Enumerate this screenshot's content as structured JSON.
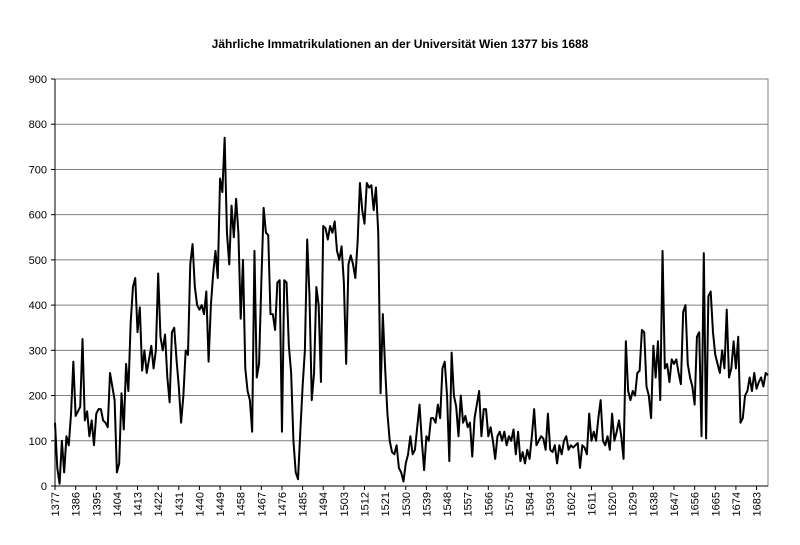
{
  "chart_data": {
    "type": "line",
    "title": "Jährliche Immatrikulationen an der Universität Wien 1377 bis 1688",
    "color": "#000000",
    "grid": true,
    "xlim": [
      1377,
      1688
    ],
    "ylim": [
      0,
      900
    ],
    "yticks": [
      0,
      100,
      200,
      300,
      400,
      500,
      600,
      700,
      800,
      900
    ],
    "xticks": [
      1377,
      1386,
      1395,
      1404,
      1413,
      1422,
      1431,
      1440,
      1449,
      1458,
      1467,
      1476,
      1485,
      1494,
      1503,
      1512,
      1521,
      1530,
      1539,
      1548,
      1557,
      1566,
      1575,
      1584,
      1593,
      1602,
      1611,
      1620,
      1629,
      1638,
      1647,
      1656,
      1665,
      1674,
      1683
    ],
    "x": [
      1377,
      1378,
      1379,
      1380,
      1381,
      1382,
      1383,
      1384,
      1385,
      1386,
      1387,
      1388,
      1389,
      1390,
      1391,
      1392,
      1393,
      1394,
      1395,
      1396,
      1397,
      1398,
      1399,
      1400,
      1401,
      1402,
      1403,
      1404,
      1405,
      1406,
      1407,
      1408,
      1409,
      1410,
      1411,
      1412,
      1413,
      1414,
      1415,
      1416,
      1417,
      1418,
      1419,
      1420,
      1421,
      1422,
      1423,
      1424,
      1425,
      1426,
      1427,
      1428,
      1429,
      1430,
      1431,
      1432,
      1433,
      1434,
      1435,
      1436,
      1437,
      1438,
      1439,
      1440,
      1441,
      1442,
      1443,
      1444,
      1445,
      1446,
      1447,
      1448,
      1449,
      1450,
      1451,
      1452,
      1453,
      1454,
      1455,
      1456,
      1457,
      1458,
      1459,
      1460,
      1461,
      1462,
      1463,
      1464,
      1465,
      1466,
      1467,
      1468,
      1469,
      1470,
      1471,
      1472,
      1473,
      1474,
      1475,
      1476,
      1477,
      1478,
      1479,
      1480,
      1481,
      1482,
      1483,
      1484,
      1485,
      1486,
      1487,
      1488,
      1489,
      1490,
      1491,
      1492,
      1493,
      1494,
      1495,
      1496,
      1497,
      1498,
      1499,
      1500,
      1501,
      1502,
      1503,
      1504,
      1505,
      1506,
      1507,
      1508,
      1509,
      1510,
      1511,
      1512,
      1513,
      1514,
      1515,
      1516,
      1517,
      1518,
      1519,
      1520,
      1521,
      1522,
      1523,
      1524,
      1525,
      1526,
      1527,
      1528,
      1529,
      1530,
      1531,
      1532,
      1533,
      1534,
      1535,
      1536,
      1537,
      1538,
      1539,
      1540,
      1541,
      1542,
      1543,
      1544,
      1545,
      1546,
      1547,
      1548,
      1549,
      1550,
      1551,
      1552,
      1553,
      1554,
      1555,
      1556,
      1557,
      1558,
      1559,
      1560,
      1561,
      1562,
      1563,
      1564,
      1565,
      1566,
      1567,
      1568,
      1569,
      1570,
      1571,
      1572,
      1573,
      1574,
      1575,
      1576,
      1577,
      1578,
      1579,
      1580,
      1581,
      1582,
      1583,
      1584,
      1585,
      1586,
      1587,
      1588,
      1589,
      1590,
      1591,
      1592,
      1593,
      1594,
      1595,
      1596,
      1597,
      1598,
      1599,
      1600,
      1601,
      1602,
      1603,
      1604,
      1605,
      1606,
      1607,
      1608,
      1609,
      1610,
      1611,
      1612,
      1613,
      1614,
      1615,
      1616,
      1617,
      1618,
      1619,
      1620,
      1621,
      1622,
      1623,
      1624,
      1625,
      1626,
      1627,
      1628,
      1629,
      1630,
      1631,
      1632,
      1633,
      1634,
      1635,
      1636,
      1637,
      1638,
      1639,
      1640,
      1641,
      1642,
      1643,
      1644,
      1645,
      1646,
      1647,
      1648,
      1649,
      1650,
      1651,
      1652,
      1653,
      1654,
      1655,
      1656,
      1657,
      1658,
      1659,
      1660,
      1661,
      1662,
      1663,
      1664,
      1665,
      1666,
      1667,
      1668,
      1669,
      1670,
      1671,
      1672,
      1673,
      1674,
      1675,
      1676,
      1677,
      1678,
      1679,
      1680,
      1681,
      1682,
      1683,
      1684,
      1685,
      1686,
      1687,
      1688
    ],
    "values": [
      140,
      40,
      5,
      100,
      30,
      110,
      90,
      160,
      275,
      155,
      165,
      175,
      325,
      145,
      165,
      110,
      145,
      90,
      160,
      170,
      170,
      145,
      140,
      130,
      250,
      220,
      190,
      30,
      50,
      205,
      125,
      270,
      210,
      360,
      440,
      460,
      340,
      395,
      255,
      300,
      250,
      280,
      310,
      260,
      300,
      470,
      330,
      300,
      335,
      240,
      185,
      340,
      350,
      280,
      220,
      140,
      200,
      300,
      290,
      490,
      535,
      440,
      400,
      390,
      400,
      380,
      430,
      275,
      400,
      470,
      520,
      460,
      680,
      650,
      770,
      560,
      490,
      620,
      550,
      635,
      560,
      370,
      500,
      260,
      210,
      190,
      120,
      520,
      240,
      270,
      450,
      615,
      560,
      555,
      380,
      380,
      345,
      450,
      455,
      120,
      455,
      450,
      310,
      250,
      100,
      30,
      15,
      120,
      220,
      300,
      545,
      420,
      190,
      250,
      440,
      400,
      230,
      575,
      570,
      545,
      575,
      560,
      585,
      520,
      500,
      530,
      450,
      270,
      490,
      510,
      490,
      460,
      540,
      670,
      610,
      580,
      670,
      660,
      665,
      610,
      660,
      560,
      205,
      380,
      260,
      160,
      100,
      75,
      70,
      90,
      40,
      30,
      10,
      50,
      70,
      110,
      70,
      80,
      130,
      180,
      100,
      35,
      110,
      100,
      150,
      150,
      140,
      180,
      150,
      260,
      275,
      200,
      55,
      295,
      200,
      175,
      110,
      200,
      140,
      155,
      130,
      140,
      65,
      150,
      180,
      210,
      110,
      170,
      170,
      110,
      130,
      100,
      60,
      110,
      120,
      100,
      120,
      90,
      110,
      100,
      125,
      70,
      120,
      55,
      75,
      50,
      80,
      60,
      110,
      170,
      90,
      100,
      110,
      105,
      80,
      160,
      80,
      75,
      90,
      50,
      90,
      70,
      100,
      110,
      80,
      90,
      85,
      90,
      95,
      40,
      90,
      85,
      70,
      160,
      100,
      120,
      100,
      150,
      190,
      100,
      90,
      110,
      80,
      160,
      100,
      120,
      145,
      110,
      60,
      320,
      210,
      190,
      210,
      200,
      250,
      255,
      345,
      340,
      220,
      200,
      150,
      310,
      240,
      320,
      190,
      520,
      260,
      270,
      230,
      280,
      270,
      280,
      250,
      225,
      385,
      400,
      270,
      240,
      220,
      180,
      330,
      340,
      110,
      515,
      105,
      420,
      430,
      340,
      290,
      270,
      250,
      300,
      260,
      390,
      240,
      260,
      320,
      260,
      330,
      140,
      150,
      200,
      210,
      240,
      210,
      250,
      215,
      230,
      240,
      220,
      250,
      245
    ]
  }
}
